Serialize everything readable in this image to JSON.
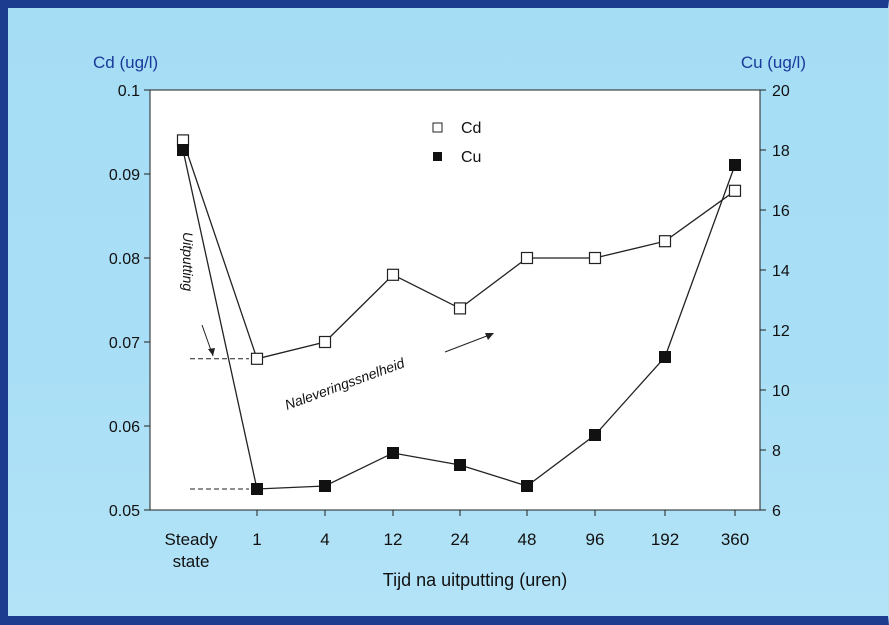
{
  "chart_data": {
    "type": "line",
    "xlabel": "Tijd na uitputting (uren)",
    "categories": [
      "Steady state",
      "1",
      "4",
      "12",
      "24",
      "48",
      "96",
      "192",
      "360"
    ],
    "left_axis": {
      "title": "Cd (ug/l)",
      "ylim": [
        0.05,
        0.1
      ],
      "ticks": [
        "0.05",
        "0.06",
        "0.07",
        "0.08",
        "0.09",
        "0.1"
      ]
    },
    "right_axis": {
      "title": "Cu (ug/l)",
      "ylim": [
        6,
        20
      ],
      "ticks": [
        "6",
        "8",
        "10",
        "12",
        "14",
        "16",
        "18",
        "20"
      ]
    },
    "series": [
      {
        "name": "Cd",
        "axis": "left",
        "marker": "open-square",
        "values": [
          0.094,
          0.068,
          0.07,
          0.078,
          0.074,
          0.08,
          0.08,
          0.082,
          0.088
        ]
      },
      {
        "name": "Cu",
        "axis": "right",
        "marker": "filled-square",
        "values": [
          18.0,
          6.7,
          6.8,
          7.9,
          7.5,
          6.8,
          8.5,
          11.1,
          17.5
        ]
      }
    ],
    "annotations": {
      "vertical": "Uitputting",
      "diagonal": "Naleveringssnelheid"
    },
    "legend_position": "top-center",
    "grid": false
  }
}
